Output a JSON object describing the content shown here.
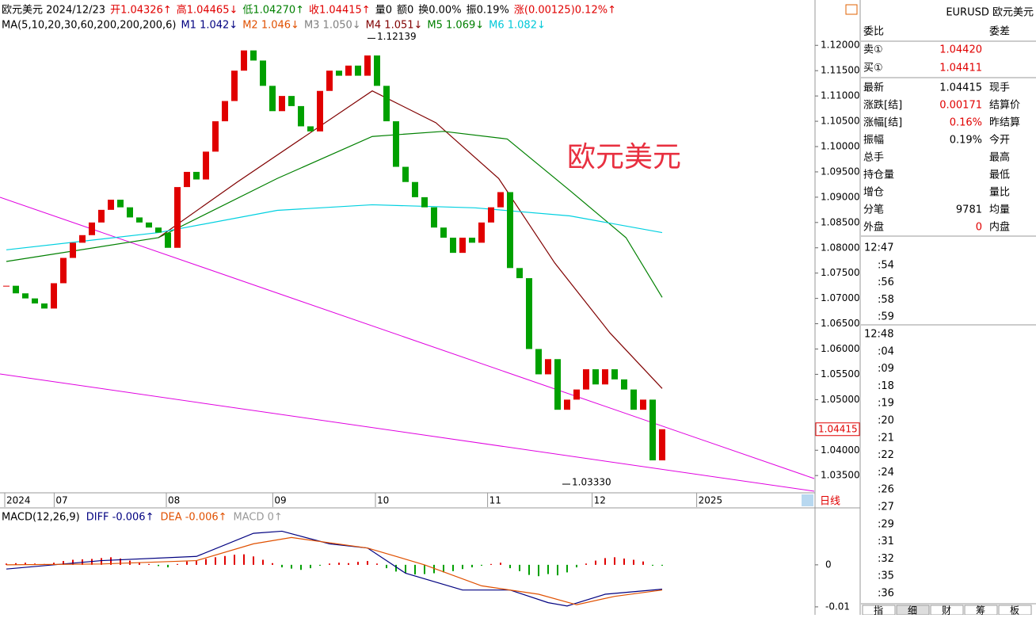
{
  "header": {
    "segments": [
      {
        "text": "欧元美元 2024/12/23",
        "color": "#000"
      },
      {
        "text": "开1.04326↑",
        "color": "#e00000"
      },
      {
        "text": "高1.04465↓",
        "color": "#e00000"
      },
      {
        "text": "低1.04270↑",
        "color": "#008000"
      },
      {
        "text": "收1.04415↑",
        "color": "#e00000"
      },
      {
        "text": "量0",
        "color": "#000"
      },
      {
        "text": "额0",
        "color": "#000"
      },
      {
        "text": "换0.00%",
        "color": "#000"
      },
      {
        "text": "振0.19%",
        "color": "#000"
      },
      {
        "text": "涨(0.00125)0.12%↑",
        "color": "#e00000"
      }
    ]
  },
  "ma_bar": {
    "segments": [
      {
        "text": "MA(5,10,20,30,60,200,200,200,6)",
        "color": "#000"
      },
      {
        "text": "M1 1.042↓",
        "color": "#000080"
      },
      {
        "text": "M2 1.046↓",
        "color": "#e05000"
      },
      {
        "text": "M3 1.050↓",
        "color": "#808080"
      },
      {
        "text": "M4 1.051↓",
        "color": "#800000"
      },
      {
        "text": "M5 1.069↓",
        "color": "#008000"
      },
      {
        "text": "M6 1.082↓",
        "color": "#00c8d8"
      }
    ]
  },
  "chart": {
    "type": "candlestick",
    "title": "欧元美元",
    "up_color": "#e00000",
    "down_color": "#00a000",
    "ylim": [
      1.0319,
      1.1227
    ],
    "yticks": [
      {
        "value": 1.12,
        "label": "1.12000"
      },
      {
        "value": 1.115,
        "label": "1.11500"
      },
      {
        "value": 1.11,
        "label": "1.11000"
      },
      {
        "value": 1.105,
        "label": "1.10500"
      },
      {
        "value": 1.1,
        "label": "1.10000"
      },
      {
        "value": 1.095,
        "label": "1.09500"
      },
      {
        "value": 1.09,
        "label": "1.09000"
      },
      {
        "value": 1.085,
        "label": "1.08500"
      },
      {
        "value": 1.08,
        "label": "1.08000"
      },
      {
        "value": 1.075,
        "label": "1.07500"
      },
      {
        "value": 1.07,
        "label": "1.07000"
      },
      {
        "value": 1.065,
        "label": "1.06500"
      },
      {
        "value": 1.06,
        "label": "1.06000"
      },
      {
        "value": 1.055,
        "label": "1.05500"
      },
      {
        "value": 1.05,
        "label": "1.05000"
      },
      {
        "value": 1.04,
        "label": "1.04000"
      },
      {
        "value": 1.035,
        "label": "1.03500"
      }
    ],
    "xticks": [
      {
        "value": 0,
        "label": "2024"
      },
      {
        "value": 5.2,
        "label": "07"
      },
      {
        "value": 17,
        "label": "08"
      },
      {
        "value": 28.2,
        "label": "09"
      },
      {
        "value": 39,
        "label": "10"
      },
      {
        "value": 50.8,
        "label": "11"
      },
      {
        "value": 61.8,
        "label": "12"
      },
      {
        "value": 72.8,
        "label": "2025"
      }
    ],
    "period_label": "日线",
    "last": {
      "value": 1.04415,
      "label": "1.04415"
    },
    "closes": [
      1.0725,
      1.071,
      1.07,
      1.069,
      1.068,
      1.073,
      1.078,
      1.081,
      1.0825,
      1.085,
      1.0875,
      1.0895,
      1.088,
      1.086,
      1.085,
      1.084,
      1.083,
      1.08,
      1.092,
      1.095,
      1.0935,
      1.099,
      1.105,
      1.109,
      1.115,
      1.119,
      1.117,
      1.112,
      1.107,
      1.11,
      1.108,
      1.104,
      1.103,
      1.111,
      1.115,
      1.114,
      1.116,
      1.114,
      1.118,
      1.112,
      1.105,
      1.096,
      1.093,
      1.09,
      1.088,
      1.084,
      1.082,
      1.079,
      1.082,
      1.081,
      1.085,
      1.088,
      1.091,
      1.076,
      1.074,
      1.06,
      1.055,
      1.058,
      1.048,
      1.05,
      1.052,
      1.056,
      1.053,
      1.056,
      1.054,
      1.052,
      1.048,
      1.05,
      1.038,
      1.04415
    ],
    "ma_lines": [
      {
        "name": "M4",
        "color": "#800000",
        "x": [
          16,
          24.3,
          38.5,
          45.2,
          51.8,
          57.7,
          63.5,
          69
        ],
        "values": [
          1.082,
          1.093,
          1.111,
          1.1047,
          1.0937,
          1.077,
          1.0632,
          1.0522
        ]
      },
      {
        "name": "M5",
        "color": "#008000",
        "x": [
          0,
          16,
          28.5,
          38.5,
          46,
          52.7,
          59.3,
          65.2,
          69
        ],
        "values": [
          1.0773,
          1.082,
          1.0937,
          1.102,
          1.103,
          1.1015,
          1.0913,
          1.082,
          1.0702
        ]
      },
      {
        "name": "M6",
        "color": "#00d0e0",
        "x": [
          0,
          16,
          28.5,
          38.5,
          49.3,
          59.3,
          69
        ],
        "values": [
          1.0796,
          1.083,
          1.0874,
          1.0885,
          1.0879,
          1.0863,
          1.083
        ]
      }
    ],
    "annotations": [
      {
        "value": 1.12139,
        "label": "1.12139",
        "x": 38
      },
      {
        "value": 1.0333,
        "label": "1.03330",
        "x": 58.5
      }
    ]
  },
  "macd": {
    "title": "MACD(12,26,9)",
    "diff_label": "DIFF -0.006↑",
    "dea_label": "DEA -0.006↑",
    "macd_label": "MACD 0↑",
    "ylim": [
      -0.0119,
      0.0128
    ],
    "yticks": [
      0,
      {
        "value": -0.01,
        "label": "-0.01"
      }
    ],
    "hist": [
      0.0003,
      0.0004,
      0.0005,
      0.0003,
      0.0002,
      0.0005,
      0.0009,
      0.0012,
      0.0013,
      0.0014,
      0.0016,
      0.0018,
      0.0015,
      0.001,
      0.0006,
      0.0002,
      -0.0003,
      -0.0006,
      0.0002,
      0.0008,
      0.001,
      0.0014,
      0.0018,
      0.0021,
      0.0024,
      0.0025,
      0.002,
      0.0012,
      0.0004,
      -0.0006,
      -0.0009,
      -0.0012,
      -0.0008,
      -0.0002,
      0.0003,
      0.0005,
      0.0004,
      0.0007,
      0.0009,
      0.0003,
      -0.0008,
      -0.0016,
      -0.002,
      -0.0023,
      -0.0022,
      -0.002,
      -0.0018,
      -0.0015,
      -0.001,
      -0.0006,
      -0.0002,
      0.0002,
      0.0005,
      -0.0008,
      -0.0015,
      -0.0024,
      -0.0027,
      -0.0022,
      -0.0025,
      -0.0018,
      -0.0006,
      0.0003,
      0.001,
      0.0016,
      0.0018,
      0.0015,
      0.0012,
      0.0008,
      -0.0002,
      -0.0002
    ],
    "diff": {
      "color": "#000080",
      "x": [
        0,
        10,
        20,
        26,
        29,
        34,
        38,
        42,
        48,
        53,
        57,
        59,
        63,
        69
      ],
      "values": [
        -0.001,
        0.001,
        0.002,
        0.0075,
        0.008,
        0.005,
        0.004,
        -0.002,
        -0.006,
        -0.006,
        -0.009,
        -0.0098,
        -0.007,
        -0.0058
      ]
    },
    "dea": {
      "color": "#e05000",
      "x": [
        0,
        10,
        20,
        26,
        30,
        38,
        44,
        50,
        56,
        60,
        64,
        69
      ],
      "values": [
        0,
        0.0002,
        0.001,
        0.005,
        0.0065,
        0.004,
        0,
        -0.005,
        -0.007,
        -0.0095,
        -0.0075,
        -0.006
      ]
    }
  },
  "panel": {
    "symbol": "EURUSD 欧元美元",
    "ratio": "委比",
    "diff": "委差",
    "ask": {
      "label": "卖①",
      "value": "1.04420"
    },
    "bid": {
      "label": "买①",
      "value": "1.04411"
    },
    "rows": [
      [
        "最新",
        "1.04415",
        "现手"
      ],
      [
        "涨跌[结]",
        "0.00171",
        "结算价"
      ],
      [
        "涨幅[结]",
        "0.16%",
        "昨结算"
      ],
      [
        "振幅",
        "0.19%",
        "今开"
      ],
      [
        "总手",
        "",
        "最高"
      ],
      [
        "持仓量",
        "",
        "最低"
      ],
      [
        "增仓",
        "",
        "量比"
      ],
      [
        "分笔",
        "9781",
        "均量"
      ],
      [
        "外盘",
        "0",
        "内盘"
      ]
    ],
    "times": [
      "12:47",
      ":54",
      ":56",
      ":58",
      ":59",
      "12:48",
      ":04",
      ":09",
      ":18",
      ":19",
      ":20",
      ":21",
      ":22",
      ":24",
      ":26",
      ":27",
      ":29",
      ":31",
      ":32",
      ":35",
      ":36"
    ],
    "tabs": [
      "指",
      "细",
      "财",
      "筹",
      "板"
    ]
  }
}
